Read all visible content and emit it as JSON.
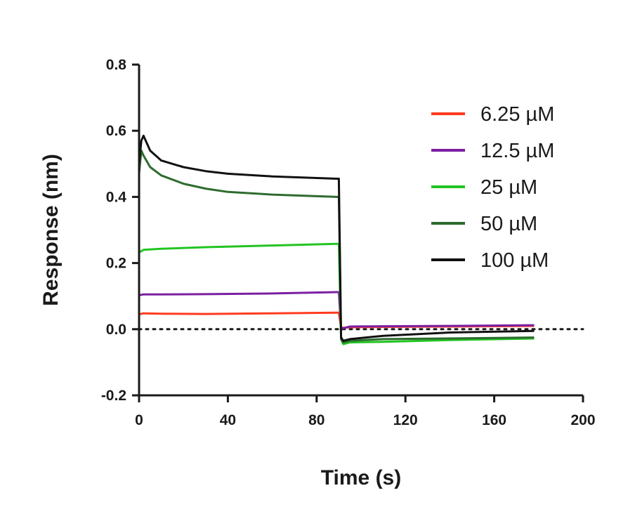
{
  "chart_data": {
    "type": "line",
    "title": "",
    "xlabel": "Time (s)",
    "ylabel": "Response (nm)",
    "xlim": [
      0,
      200
    ],
    "ylim": [
      -0.2,
      0.8
    ],
    "x_ticks": [
      "0",
      "40",
      "80",
      "120",
      "160",
      "200"
    ],
    "y_ticks": [
      "-0.2",
      "0.0",
      "0.2",
      "0.4",
      "0.6",
      "0.8"
    ],
    "x_tick_values": [
      0,
      40,
      80,
      120,
      160,
      200
    ],
    "y_tick_values": [
      -0.2,
      0.0,
      0.2,
      0.4,
      0.6,
      0.8
    ],
    "grid": false,
    "reference_line": {
      "y": 0.0,
      "style": "dotted"
    },
    "legend_position": "top-right",
    "series": [
      {
        "name": "6.25 µM",
        "color": "#ff3b1f",
        "x": [
          0,
          2,
          10,
          30,
          60,
          89,
          90,
          91,
          92,
          95,
          110,
          140,
          178
        ],
        "y": [
          0.045,
          0.048,
          0.047,
          0.046,
          0.048,
          0.05,
          0.05,
          0.005,
          0.004,
          0.006,
          0.007,
          0.008,
          0.01
        ]
      },
      {
        "name": "12.5 µM",
        "color": "#7b1fa2",
        "x": [
          0,
          2,
          10,
          30,
          60,
          89,
          90,
          91,
          92,
          95,
          110,
          140,
          178
        ],
        "y": [
          0.103,
          0.105,
          0.105,
          0.106,
          0.108,
          0.112,
          0.112,
          0.005,
          0.003,
          0.008,
          0.009,
          0.01,
          0.012
        ]
      },
      {
        "name": "25 µM",
        "color": "#22c422",
        "x": [
          0,
          2,
          10,
          30,
          60,
          89,
          90,
          91,
          92,
          95,
          110,
          140,
          178
        ],
        "y": [
          0.232,
          0.24,
          0.243,
          0.248,
          0.253,
          0.258,
          0.258,
          -0.03,
          -0.045,
          -0.04,
          -0.038,
          -0.033,
          -0.028
        ]
      },
      {
        "name": "50 µM",
        "color": "#2e6b2e",
        "x": [
          0,
          1,
          2,
          5,
          10,
          20,
          30,
          40,
          60,
          89,
          90,
          91,
          92,
          95,
          110,
          140,
          178
        ],
        "y": [
          0.47,
          0.54,
          0.525,
          0.49,
          0.465,
          0.44,
          0.425,
          0.415,
          0.407,
          0.4,
          0.4,
          -0.03,
          -0.04,
          -0.035,
          -0.03,
          -0.028,
          -0.025
        ]
      },
      {
        "name": "100 µM",
        "color": "#111111",
        "x": [
          0,
          1,
          2,
          5,
          10,
          20,
          30,
          40,
          60,
          89,
          90,
          91,
          92,
          95,
          110,
          140,
          178
        ],
        "y": [
          0.5,
          0.57,
          0.585,
          0.54,
          0.51,
          0.49,
          0.478,
          0.47,
          0.462,
          0.455,
          0.455,
          -0.025,
          -0.035,
          -0.03,
          -0.02,
          -0.01,
          -0.005
        ]
      }
    ]
  }
}
